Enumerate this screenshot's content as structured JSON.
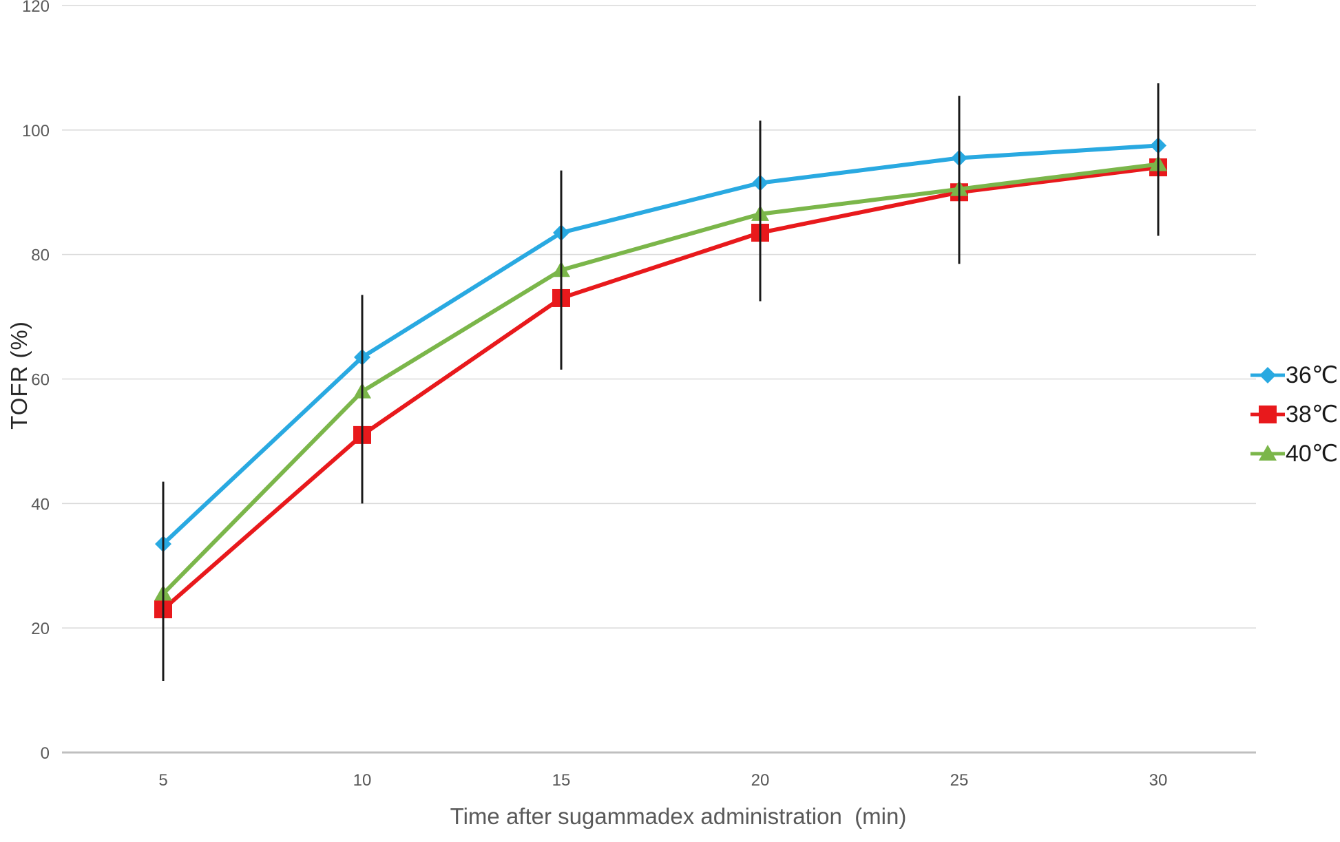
{
  "chart_data": {
    "type": "line",
    "x": [
      5,
      10,
      15,
      20,
      25,
      30
    ],
    "x_tick_labels": [
      "5",
      "10",
      "15",
      "20",
      "25",
      "30"
    ],
    "xlabel": "Time after sugammadex administration  (min)",
    "ylabel": "TOFR (%)",
    "ylim": [
      0,
      120
    ],
    "yticks": [
      0,
      20,
      40,
      60,
      80,
      100,
      120
    ],
    "grid": true,
    "legend_position": "right",
    "series": [
      {
        "name": "36℃",
        "marker": "diamond",
        "color": "#29a9e1",
        "values": [
          33.5,
          63.5,
          83.5,
          91.5,
          95.5,
          97.5
        ]
      },
      {
        "name": "38℃",
        "marker": "square",
        "color": "#e8191c",
        "values": [
          23,
          51,
          73,
          83.5,
          90,
          94
        ]
      },
      {
        "name": "40℃",
        "marker": "triangle",
        "color": "#7bb64a",
        "values": [
          25.5,
          58,
          77.5,
          86.5,
          90.5,
          94.5
        ]
      }
    ],
    "error_bars": [
      {
        "x": 5,
        "low": 11.5,
        "high": 43.5
      },
      {
        "x": 10,
        "low": 40,
        "high": 73.5
      },
      {
        "x": 15,
        "low": 61.5,
        "high": 93.5
      },
      {
        "x": 20,
        "low": 72.5,
        "high": 101.5
      },
      {
        "x": 25,
        "low": 78.5,
        "high": 105.5
      },
      {
        "x": 30,
        "low": 83,
        "high": 107.5
      }
    ],
    "colors": {
      "gridline": "#d9d9d9",
      "axis_line": "#bfbfbf",
      "error_bar": "#1a1a1a",
      "tick_label": "#595959",
      "legend_text": "#1a1a1a"
    }
  }
}
